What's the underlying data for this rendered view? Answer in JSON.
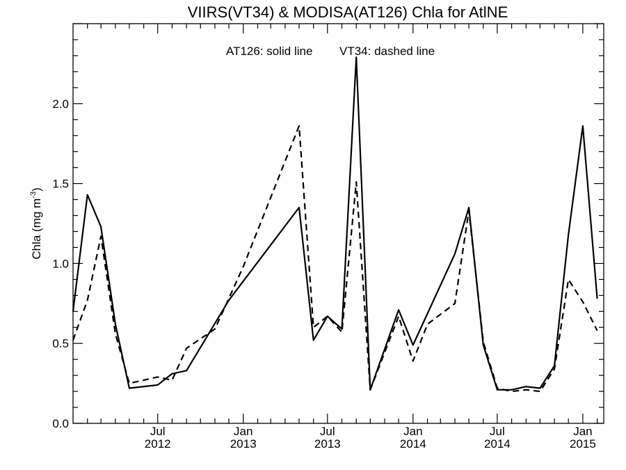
{
  "chart_data": {
    "type": "line",
    "title": "VIIRS(VT34) & MODISA(AT126)  Chla for AtlNE",
    "ylabel": "Chla (mg m",
    "ylabel_sup": "-3",
    "ylabel_close": ")",
    "ylim": [
      0,
      2.5
    ],
    "xlim": [
      "2012-01-01",
      "2015-02-15"
    ],
    "annotations": [
      "AT126: solid line",
      "VT34: dashed line"
    ],
    "y_ticks": [
      {
        "value": 0.0,
        "label": "0.0"
      },
      {
        "value": 0.5,
        "label": "0.5"
      },
      {
        "value": 1.0,
        "label": "1.0"
      },
      {
        "value": 1.5,
        "label": "1.5"
      },
      {
        "value": 2.0,
        "label": "2.0"
      }
    ],
    "x_ticks": [
      {
        "date": "2012-07-01",
        "month": "Jul",
        "year": "2012"
      },
      {
        "date": "2013-01-01",
        "month": "Jan",
        "year": "2013"
      },
      {
        "date": "2013-07-01",
        "month": "Jul",
        "year": "2013"
      },
      {
        "date": "2014-01-01",
        "month": "Jan",
        "year": "2014"
      },
      {
        "date": "2014-07-01",
        "month": "Jul",
        "year": "2014"
      },
      {
        "date": "2015-01-01",
        "month": "Jan",
        "year": "2015"
      }
    ],
    "series": [
      {
        "style": "solid",
        "points": [
          [
            "2012-01-01",
            0.7
          ],
          [
            "2012-02-01",
            1.43
          ],
          [
            "2012-03-01",
            1.23
          ],
          [
            "2012-04-01",
            0.62
          ],
          [
            "2012-05-01",
            0.22
          ],
          [
            "2012-07-01",
            0.24
          ],
          [
            "2012-08-01",
            0.31
          ],
          [
            "2012-09-01",
            0.33
          ],
          [
            "2012-12-01",
            0.77
          ],
          [
            "2013-05-01",
            1.35
          ],
          [
            "2013-06-01",
            0.52
          ],
          [
            "2013-07-01",
            0.67
          ],
          [
            "2013-08-01",
            0.59
          ],
          [
            "2013-09-01",
            2.29
          ],
          [
            "2013-10-01",
            0.21
          ],
          [
            "2013-12-01",
            0.71
          ],
          [
            "2014-01-01",
            0.49
          ],
          [
            "2014-04-01",
            1.06
          ],
          [
            "2014-05-01",
            1.35
          ],
          [
            "2014-06-01",
            0.49
          ],
          [
            "2014-07-01",
            0.21
          ],
          [
            "2014-08-01",
            0.21
          ],
          [
            "2014-09-01",
            0.23
          ],
          [
            "2014-10-01",
            0.22
          ],
          [
            "2014-11-01",
            0.36
          ],
          [
            "2014-12-01",
            1.18
          ],
          [
            "2015-01-01",
            1.86
          ],
          [
            "2015-02-01",
            0.78
          ]
        ]
      },
      {
        "style": "dashed",
        "points": [
          [
            "2012-01-01",
            0.52
          ],
          [
            "2012-02-01",
            0.77
          ],
          [
            "2012-03-01",
            1.17
          ],
          [
            "2012-04-01",
            0.56
          ],
          [
            "2012-05-01",
            0.25
          ],
          [
            "2012-07-01",
            0.29
          ],
          [
            "2012-08-01",
            0.27
          ],
          [
            "2012-09-01",
            0.47
          ],
          [
            "2012-11-01",
            0.59
          ],
          [
            "2013-01-01",
            0.98
          ],
          [
            "2013-05-01",
            1.86
          ],
          [
            "2013-06-01",
            0.6
          ],
          [
            "2013-07-01",
            0.67
          ],
          [
            "2013-08-01",
            0.57
          ],
          [
            "2013-09-01",
            1.51
          ],
          [
            "2013-10-01",
            0.21
          ],
          [
            "2013-12-01",
            0.67
          ],
          [
            "2014-01-01",
            0.39
          ],
          [
            "2014-02-01",
            0.62
          ],
          [
            "2014-04-01",
            0.75
          ],
          [
            "2014-05-01",
            1.33
          ],
          [
            "2014-06-01",
            0.51
          ],
          [
            "2014-07-01",
            0.22
          ],
          [
            "2014-08-01",
            0.2
          ],
          [
            "2014-09-01",
            0.21
          ],
          [
            "2014-10-01",
            0.2
          ],
          [
            "2014-11-01",
            0.34
          ],
          [
            "2014-12-01",
            0.9
          ],
          [
            "2015-01-01",
            0.76
          ],
          [
            "2015-02-01",
            0.58
          ]
        ]
      }
    ]
  }
}
